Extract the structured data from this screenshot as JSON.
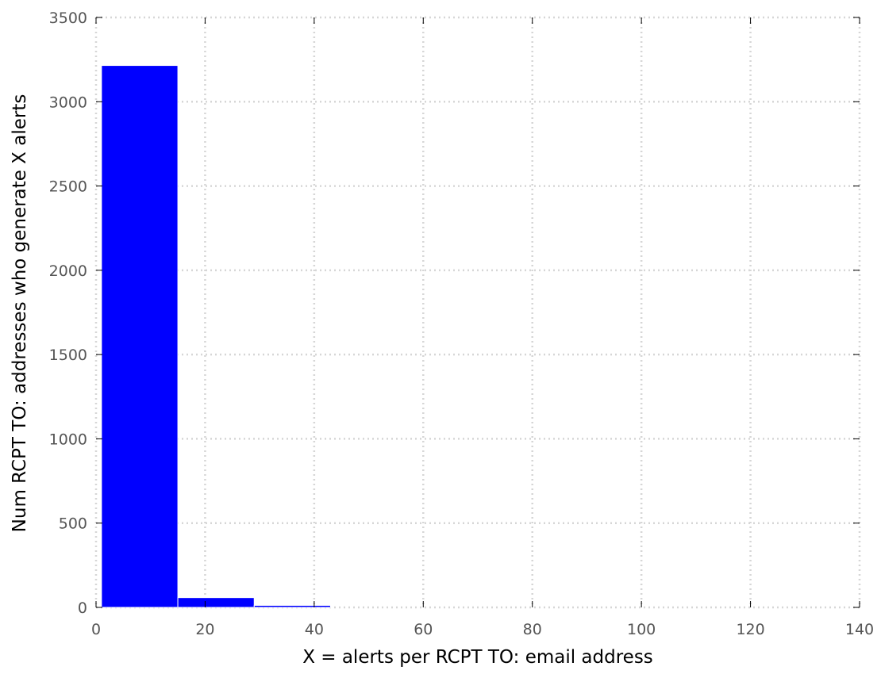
{
  "chart_data": {
    "type": "bar",
    "title": "",
    "xlabel": "X = alerts per RCPT TO: email address",
    "ylabel": "Num RCPT TO: addresses who generate X alerts",
    "bins": [
      {
        "x_start": 1,
        "x_end": 15,
        "value": 3215
      },
      {
        "x_start": 15,
        "x_end": 29,
        "value": 58
      },
      {
        "x_start": 29,
        "x_end": 43,
        "value": 12
      }
    ],
    "xlim": [
      0,
      140
    ],
    "ylim": [
      0,
      3500
    ],
    "xticks": [
      0,
      20,
      40,
      60,
      80,
      100,
      120,
      140
    ],
    "yticks": [
      0,
      500,
      1000,
      1500,
      2000,
      2500,
      3000,
      3500
    ],
    "grid": true,
    "legend": "none",
    "colors": {
      "bar_fill": "#0000ff",
      "bar_edge": "#ffffff",
      "grid": "#d6d6d6",
      "tick_label": "#555555",
      "axis_title": "#000000"
    }
  }
}
